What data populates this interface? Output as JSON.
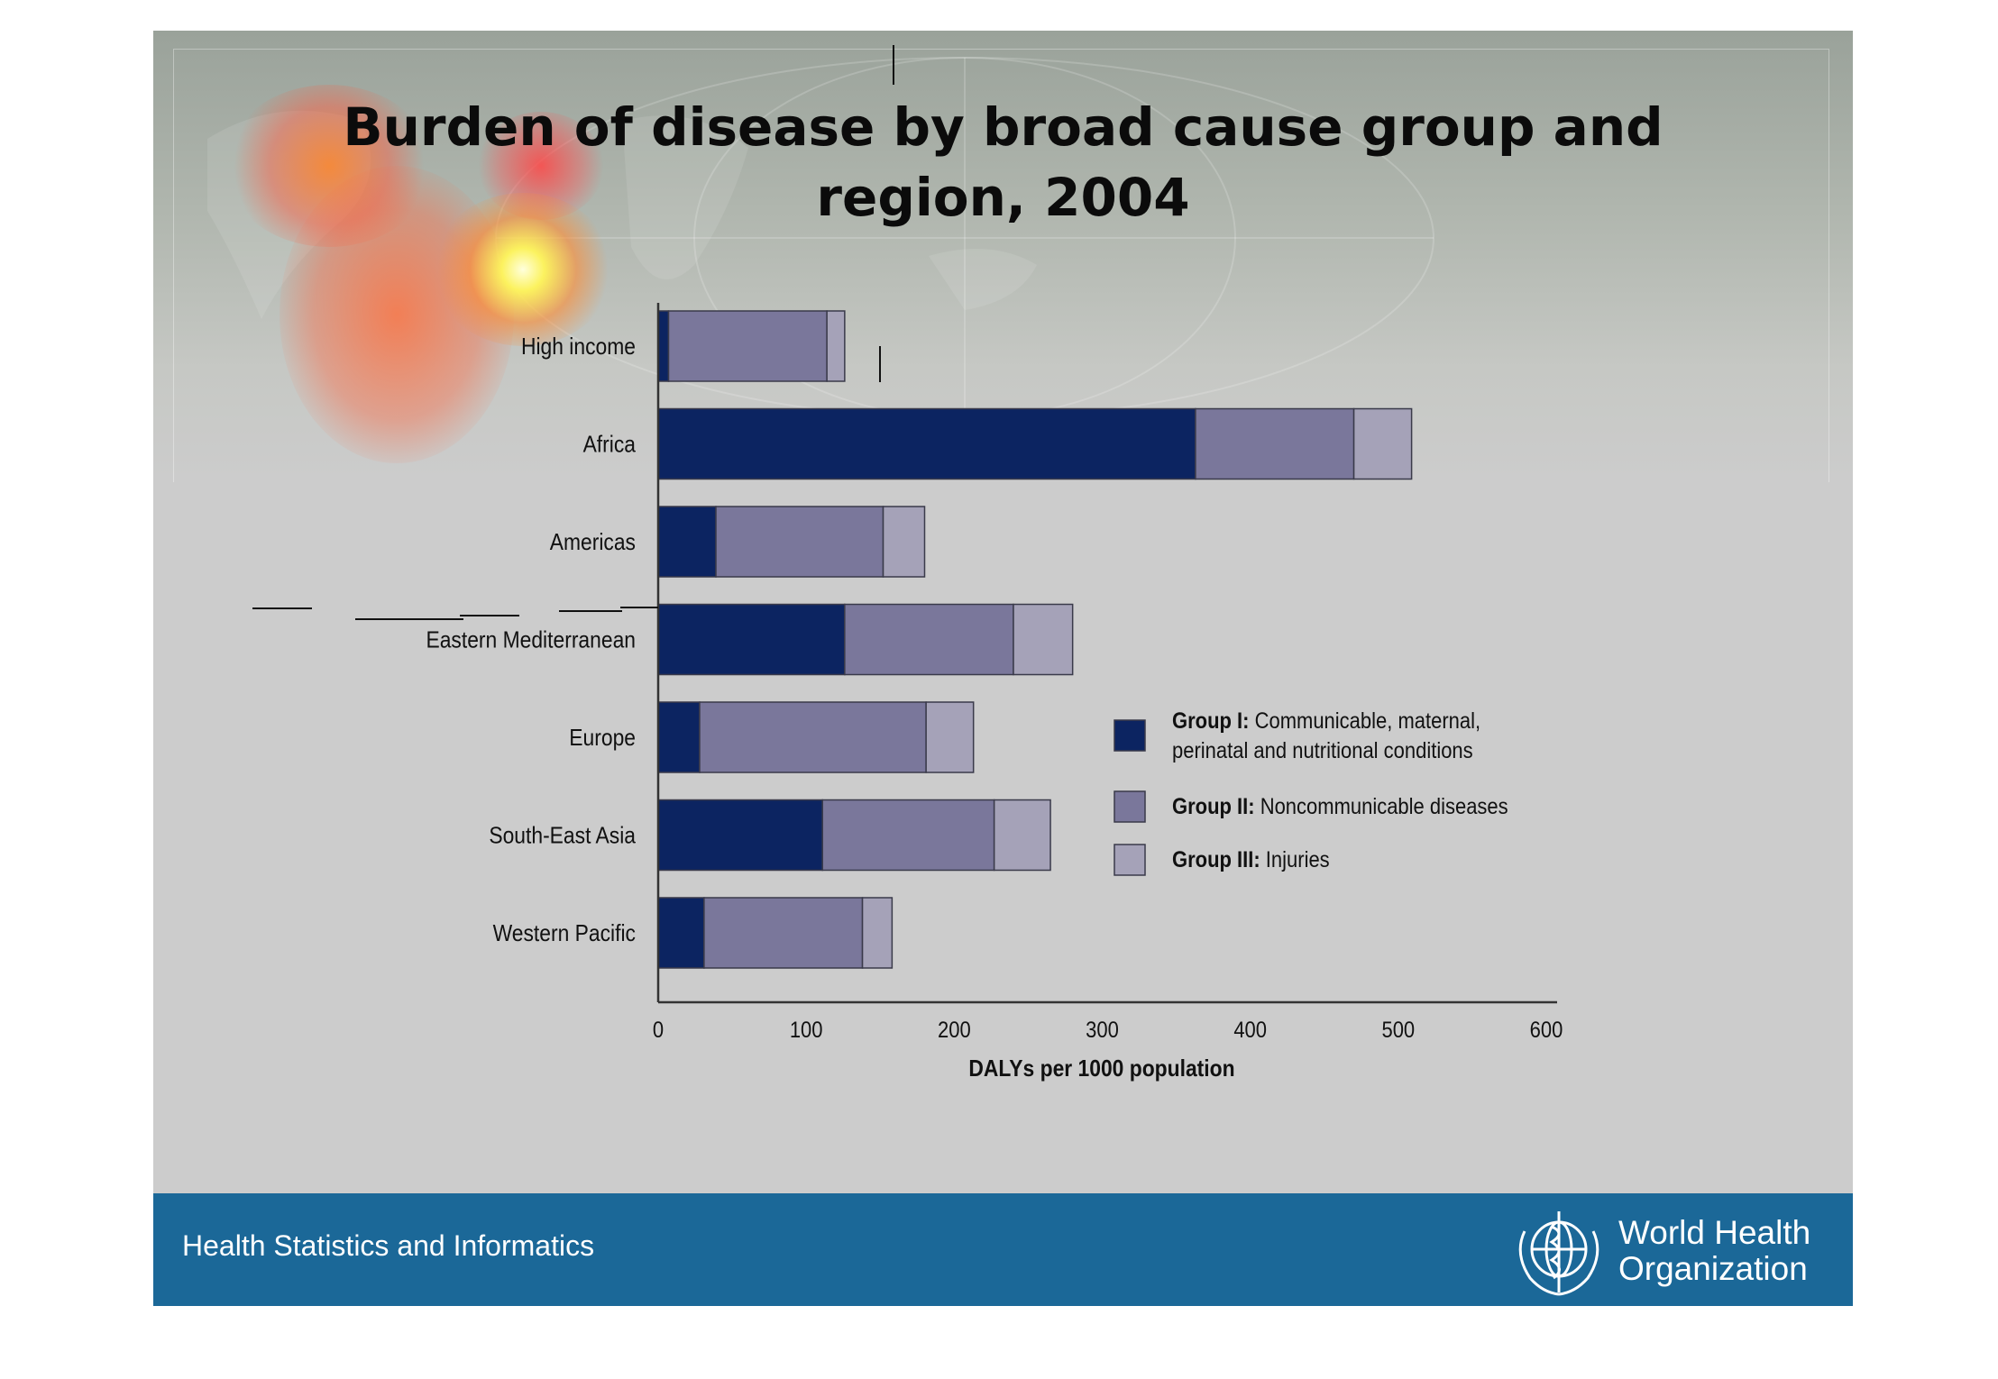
{
  "title_line1": "Burden of disease by broad cause group and",
  "title_line2": "region, 2004",
  "footer": {
    "text": "Health Statistics and Informatics",
    "org_line1": "World Health",
    "org_line2": "Organization",
    "logo_icon": "who-emblem-icon"
  },
  "colors": {
    "group1": "#0c2461",
    "group2": "#7a779b",
    "group3": "#a5a2b8",
    "footer": "#1b6898"
  },
  "chart_data": {
    "type": "bar",
    "orientation": "horizontal",
    "stacked": true,
    "categories": [
      "High income",
      "Africa",
      "Americas",
      "Eastern Mediterranean",
      "Europe",
      "South-East Asia",
      "Western Pacific"
    ],
    "series": [
      {
        "name": "Group I:",
        "desc": "Communicable, maternal, perinatal and nutritional conditions",
        "desc_line1": "Communicable, maternal,",
        "desc_line2": "perinatal and nutritional conditions",
        "values": [
          7,
          363,
          39,
          126,
          28,
          111,
          31
        ]
      },
      {
        "name": "Group II:",
        "desc": "Noncommunicable diseases",
        "values": [
          107,
          107,
          113,
          114,
          153,
          116,
          107
        ]
      },
      {
        "name": "Group III:",
        "desc": "Injuries",
        "values": [
          12,
          39,
          28,
          40,
          32,
          38,
          20
        ]
      }
    ],
    "xlabel": "DALYs per 1000 population",
    "ylabel": "",
    "xlim": [
      0,
      600
    ],
    "xticks": [
      0,
      100,
      200,
      300,
      400,
      500,
      600
    ],
    "grid": false,
    "legend_position": "right"
  }
}
